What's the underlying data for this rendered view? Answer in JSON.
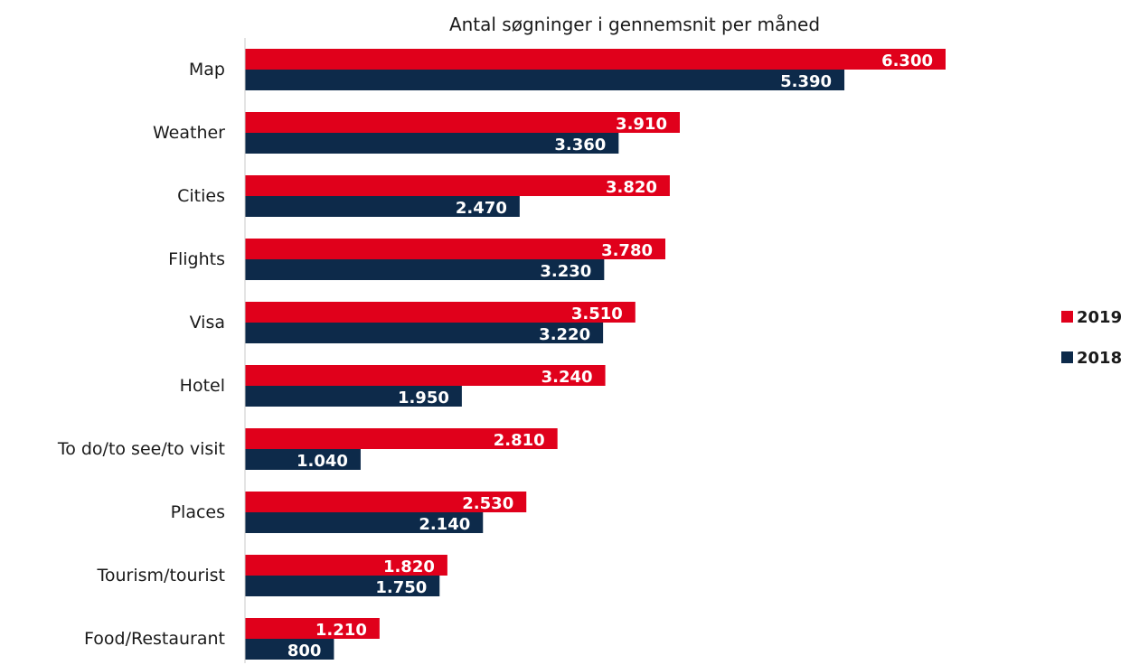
{
  "chart_data": {
    "type": "bar",
    "orientation": "horizontal",
    "title": "Antal søgninger i gennemsnit per måned",
    "categories": [
      "Map",
      "Weather",
      "Cities",
      "Flights",
      "Visa",
      "Hotel",
      "To do/to see/to visit",
      "Places",
      "Tourism/tourist",
      "Food/Restaurant"
    ],
    "series": [
      {
        "name": "2019",
        "color": "#e0001b",
        "values": [
          6300,
          3910,
          3820,
          3780,
          3510,
          3240,
          2810,
          2530,
          1820,
          1210
        ],
        "labels": [
          "6.300",
          "3.910",
          "3.820",
          "3.780",
          "3.510",
          "3.240",
          "2.810",
          "2.530",
          "1.820",
          "1.210"
        ]
      },
      {
        "name": "2018",
        "color": "#0d2a4a",
        "values": [
          5390,
          3360,
          2470,
          3230,
          3220,
          1950,
          1040,
          2140,
          1750,
          800
        ],
        "labels": [
          "5.390",
          "3.360",
          "2.470",
          "3.230",
          "3.220",
          "1.950",
          "1.040",
          "2.140",
          "1.750",
          "800"
        ]
      }
    ],
    "xlim": [
      0,
      8000
    ],
    "grid": false,
    "legend_position": "right"
  }
}
